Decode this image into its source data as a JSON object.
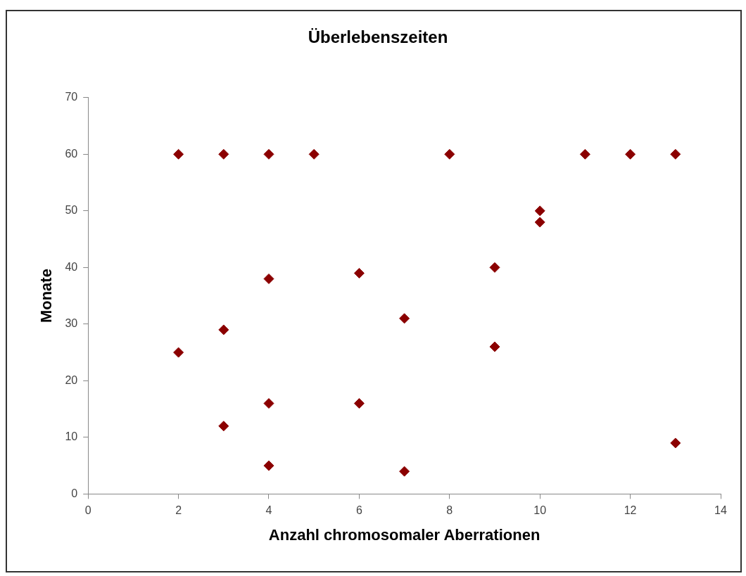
{
  "chart_data": {
    "type": "scatter",
    "title": "Überlebenszeiten",
    "xlabel": "Anzahl chromosomaler Aberrationen",
    "ylabel": "Monate",
    "x": [
      2,
      3,
      4,
      5,
      8,
      11,
      12,
      13,
      10,
      10,
      4,
      6,
      9,
      7,
      3,
      2,
      9,
      4,
      6,
      3,
      4,
      7,
      13
    ],
    "values": [
      60,
      60,
      60,
      60,
      60,
      60,
      60,
      60,
      50,
      48,
      38,
      39,
      40,
      31,
      29,
      25,
      26,
      16,
      16,
      12,
      5,
      4,
      9
    ],
    "color": "#8b0000",
    "marker": "diamond",
    "xlim": [
      0,
      14
    ],
    "xticks": [
      0,
      2,
      4,
      6,
      8,
      10,
      12,
      14
    ],
    "ylim": [
      0,
      70
    ],
    "yticks": [
      0,
      10,
      20,
      30,
      40,
      50,
      60,
      70
    ],
    "grid": false
  }
}
